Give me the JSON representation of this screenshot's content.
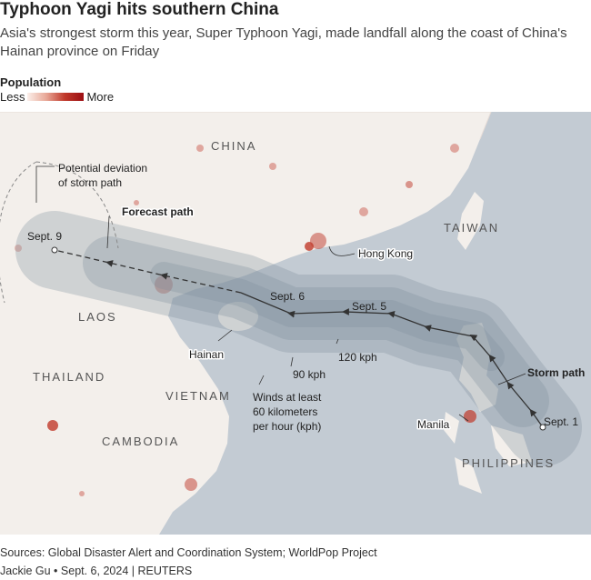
{
  "header": {
    "title": "Typhoon Yagi hits southern China",
    "subtitle": "Asia's strongest storm this year, Super Typhoon Yagi, made landfall along the coast of China's Hainan province on Friday"
  },
  "legend": {
    "title": "Population",
    "low": "Less",
    "high": "More"
  },
  "map": {
    "countries": [
      "CHINA",
      "TAIWAN",
      "LAOS",
      "THAILAND",
      "VIETNAM",
      "CAMBODIA",
      "PHILIPPINES"
    ],
    "places": [
      "Hong Kong",
      "Hainan",
      "Manila"
    ],
    "dates": [
      "Sept. 9",
      "Sept. 6",
      "Sept. 5",
      "Sept. 1"
    ],
    "paths": {
      "forecast": "Forecast path",
      "storm": "Storm path",
      "deviation": [
        "Potential deviation",
        "of storm path"
      ]
    },
    "winds": {
      "high": "120 kph",
      "mid": "90 kph",
      "low": [
        "Winds at least",
        "60 kilometers",
        "per hour (kph)"
      ]
    }
  },
  "footer": {
    "sources": "Sources: Global Disaster Alert and Coordination System; WorldPop Project",
    "credit": "Jackie Gu • Sept. 6, 2024 | REUTERS"
  }
}
